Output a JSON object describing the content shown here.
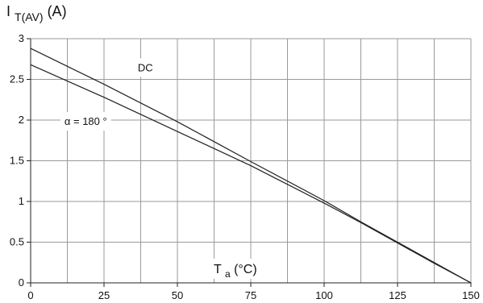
{
  "chart_data": {
    "type": "line",
    "title": "",
    "ylabel": {
      "main": "I",
      "subscript": "T(AV)",
      "unit": "(A)"
    },
    "xlabel": {
      "main": "T",
      "subscript": "a",
      "unit": "(°C)"
    },
    "xlim": [
      0,
      150
    ],
    "ylim": [
      0,
      3
    ],
    "x_ticks": [
      0,
      25,
      50,
      75,
      100,
      125,
      150
    ],
    "y_ticks": [
      0,
      0.5,
      1,
      1.5,
      2,
      2.5,
      3
    ],
    "x_tick_labels": [
      "0",
      "25",
      "50",
      "75",
      "100",
      "125",
      "150"
    ],
    "y_tick_labels": [
      "0",
      "0.5",
      "1",
      "1.5",
      "2",
      "2.5",
      "3"
    ],
    "x_grid_values": [
      12.5,
      25,
      37.5,
      50,
      62.5,
      75,
      87.5,
      100,
      112.5,
      125,
      137.5,
      150
    ],
    "y_grid_values": [
      0.5,
      1,
      1.5,
      2,
      2.5,
      3
    ],
    "grid": true,
    "legend": "none",
    "series": [
      {
        "name": "DC",
        "x": [
          0,
          25,
          50,
          75,
          100,
          112.5,
          125,
          137.5,
          150
        ],
        "y": [
          2.88,
          2.44,
          1.98,
          1.49,
          1.01,
          0.75,
          0.5,
          0.25,
          0
        ]
      },
      {
        "name": "α = 180 °",
        "x": [
          0,
          25,
          50,
          75,
          100,
          112.5,
          125,
          137.5,
          150
        ],
        "y": [
          2.68,
          2.28,
          1.86,
          1.44,
          0.98,
          0.74,
          0.49,
          0.24,
          0
        ]
      }
    ],
    "annotations": [
      {
        "text": "DC",
        "x": 36.5,
        "y": 2.6
      },
      {
        "text": "α = 180 °",
        "x": 11.5,
        "y": 1.94
      }
    ],
    "colors": {
      "line": "#222222",
      "grid": "#9a9a9a",
      "axis": "#222222",
      "text": "#111111",
      "label_box": "#ffffff"
    }
  }
}
